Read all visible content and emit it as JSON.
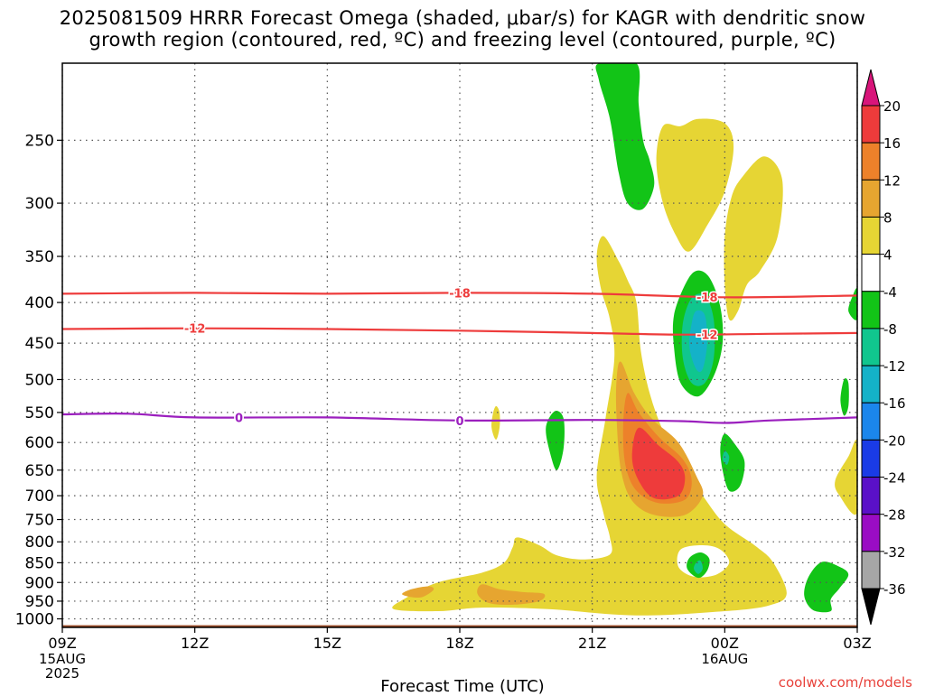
{
  "title": {
    "line1": "2025081509 HRRR Forecast Omega (shaded, μbar/s) for KAGR with dendritic snow",
    "line2": "growth region (contoured, red, ºC) and freezing level (contoured, purple, ºC)"
  },
  "credit": "coolwx.com/models",
  "colors": {
    "ground": "#a0522d",
    "dgz_contour": "#ee3c3c",
    "freezing_contour": "#9b1fbe",
    "grid": "#555555"
  },
  "chart_data": {
    "type": "heatmap",
    "xlabel": "Forecast Time (UTC)",
    "ylabel": "",
    "x_ticks": [
      {
        "hour": 0,
        "label": "09Z",
        "sub": [
          "15AUG",
          "2025"
        ]
      },
      {
        "hour": 3,
        "label": "12Z",
        "sub": []
      },
      {
        "hour": 6,
        "label": "15Z",
        "sub": []
      },
      {
        "hour": 9,
        "label": "18Z",
        "sub": []
      },
      {
        "hour": 12,
        "label": "21Z",
        "sub": []
      },
      {
        "hour": 15,
        "label": "00Z",
        "sub": [
          "16AUG"
        ]
      },
      {
        "hour": 18,
        "label": "03Z",
        "sub": []
      }
    ],
    "xlim": [
      0,
      18
    ],
    "ylim_hpa": [
      1025,
      200
    ],
    "y_log": true,
    "y_ticks": [
      250,
      300,
      350,
      400,
      450,
      500,
      550,
      600,
      650,
      700,
      750,
      800,
      850,
      900,
      950,
      1000
    ],
    "grid": true,
    "colorbar": {
      "levels": [
        "20",
        "16",
        "12",
        "8",
        "4",
        "-4",
        "-8",
        "-12",
        "-16",
        "-20",
        "-24",
        "-28",
        "-32",
        "-36"
      ],
      "colors": [
        "#ee3b3b",
        "#ed812a",
        "#e6a530",
        "#e6d534",
        "#ffffff",
        "#12c417",
        "#10c68e",
        "#14b2c8",
        "#1b86ec",
        "#1a3be6",
        "#5a10c8",
        "#9a0cc4",
        "#a6a6a6"
      ],
      "top_arrow": "#d8157a",
      "bottom_arrow": "#000000"
    },
    "contours": [
      {
        "label": "-18",
        "color": "#ee3c3c",
        "points": [
          [
            0,
            390
          ],
          [
            3,
            389
          ],
          [
            6,
            390
          ],
          [
            9,
            389
          ],
          [
            12,
            390
          ],
          [
            15,
            394
          ],
          [
            18,
            392
          ]
        ],
        "label_positions": [
          9.0,
          14.6
        ]
      },
      {
        "label": "-12",
        "color": "#ee3c3c",
        "points": [
          [
            0,
            432
          ],
          [
            3,
            431
          ],
          [
            6,
            432
          ],
          [
            9,
            434
          ],
          [
            12,
            437
          ],
          [
            14,
            439
          ],
          [
            16,
            438
          ],
          [
            18,
            437
          ]
        ],
        "label_positions": [
          3.0,
          14.6
        ]
      },
      {
        "label": "0",
        "color": "#9b1fbe",
        "points": [
          [
            0,
            553
          ],
          [
            1.5,
            552
          ],
          [
            3,
            558
          ],
          [
            6,
            558
          ],
          [
            9,
            563
          ],
          [
            12,
            562
          ],
          [
            14,
            564
          ],
          [
            15,
            567
          ],
          [
            16,
            563
          ],
          [
            18,
            558
          ]
        ],
        "label_positions": [
          4.0,
          9.0
        ]
      }
    ],
    "shaded_regions": [
      {
        "value": 6,
        "color": "#e6d534",
        "points": [
          [
            12.25,
            330
          ],
          [
            12.6,
            355
          ],
          [
            12.8,
            375
          ],
          [
            13.0,
            400
          ],
          [
            13.1,
            460
          ],
          [
            13.3,
            520
          ],
          [
            13.6,
            580
          ],
          [
            14.0,
            640
          ],
          [
            14.5,
            700
          ],
          [
            15.0,
            760
          ],
          [
            15.7,
            810
          ],
          [
            16.1,
            850
          ],
          [
            16.4,
            930
          ],
          [
            16.0,
            962
          ],
          [
            15.0,
            978
          ],
          [
            13.0,
            990
          ],
          [
            11.0,
            972
          ],
          [
            9.5,
            968
          ],
          [
            8.5,
            978
          ],
          [
            7.5,
            972
          ],
          [
            7.8,
            940
          ],
          [
            8.5,
            900
          ],
          [
            9.5,
            875
          ],
          [
            10.0,
            850
          ],
          [
            10.2,
            812
          ],
          [
            10.3,
            790
          ],
          [
            10.8,
            808
          ],
          [
            11.2,
            832
          ],
          [
            11.8,
            842
          ],
          [
            12.4,
            830
          ],
          [
            12.4,
            790
          ],
          [
            12.25,
            735
          ],
          [
            12.1,
            660
          ],
          [
            12.3,
            560
          ],
          [
            12.5,
            470
          ],
          [
            12.4,
            420
          ],
          [
            12.2,
            385
          ],
          [
            12.1,
            350
          ]
        ]
      },
      {
        "value": 6,
        "color": "#e6d534",
        "points": [
          [
            13.6,
            240
          ],
          [
            14.0,
            240
          ],
          [
            14.4,
            235
          ],
          [
            15.0,
            238
          ],
          [
            15.2,
            255
          ],
          [
            15.0,
            290
          ],
          [
            14.6,
            320
          ],
          [
            14.2,
            345
          ],
          [
            13.9,
            330
          ],
          [
            13.6,
            300
          ],
          [
            13.45,
            265
          ]
        ]
      },
      {
        "value": 6,
        "color": "#e6d534",
        "points": [
          [
            15.4,
            278
          ],
          [
            15.9,
            262
          ],
          [
            16.3,
            280
          ],
          [
            16.2,
            330
          ],
          [
            15.8,
            365
          ],
          [
            15.5,
            380
          ],
          [
            15.3,
            410
          ],
          [
            15.1,
            420
          ],
          [
            15.0,
            380
          ],
          [
            15.0,
            330
          ],
          [
            15.15,
            295
          ]
        ]
      },
      {
        "value": 6,
        "color": "#e6d534",
        "points": [
          [
            17.8,
            625
          ],
          [
            18.0,
            600
          ],
          [
            18.0,
            735
          ],
          [
            17.6,
            700
          ],
          [
            17.5,
            670
          ]
        ]
      },
      {
        "value": 6,
        "color": "#e6d534",
        "points": [
          [
            9.82,
            540
          ],
          [
            9.9,
            550
          ],
          [
            9.9,
            575
          ],
          [
            9.82,
            595
          ],
          [
            9.72,
            575
          ],
          [
            9.75,
            552
          ]
        ]
      },
      {
        "value": 10,
        "color": "#e6a530",
        "points": [
          [
            9.5,
            905
          ],
          [
            9.9,
            918
          ],
          [
            10.4,
            925
          ],
          [
            10.9,
            930
          ],
          [
            10.8,
            950
          ],
          [
            10.2,
            960
          ],
          [
            9.65,
            955
          ],
          [
            9.4,
            930
          ]
        ]
      },
      {
        "value": 10,
        "color": "#e6a530",
        "points": [
          [
            7.9,
            918
          ],
          [
            8.3,
            910
          ],
          [
            8.4,
            920
          ],
          [
            8.1,
            940
          ],
          [
            7.7,
            932
          ]
        ]
      },
      {
        "value": 10,
        "color": "#e6a530",
        "points": [
          [
            12.65,
            475
          ],
          [
            12.95,
            520
          ],
          [
            13.35,
            560
          ],
          [
            13.95,
            600
          ],
          [
            14.35,
            660
          ],
          [
            14.5,
            700
          ],
          [
            14.1,
            740
          ],
          [
            13.4,
            740
          ],
          [
            12.9,
            710
          ],
          [
            12.65,
            650
          ],
          [
            12.55,
            560
          ],
          [
            12.55,
            500
          ]
        ]
      },
      {
        "value": 14,
        "color": "#ed812a",
        "points": [
          [
            12.8,
            520
          ],
          [
            13.05,
            550
          ],
          [
            13.5,
            590
          ],
          [
            14.05,
            630
          ],
          [
            14.25,
            670
          ],
          [
            14.1,
            708
          ],
          [
            13.5,
            715
          ],
          [
            13.0,
            690
          ],
          [
            12.75,
            640
          ],
          [
            12.7,
            570
          ]
        ]
      },
      {
        "value": 18,
        "color": "#ee3b3b",
        "points": [
          [
            13.05,
            575
          ],
          [
            13.5,
            605
          ],
          [
            13.95,
            635
          ],
          [
            14.1,
            665
          ],
          [
            13.95,
            700
          ],
          [
            13.4,
            705
          ],
          [
            13.05,
            670
          ],
          [
            12.9,
            625
          ]
        ]
      },
      {
        "value": 0,
        "color": "#ffffff",
        "points": [
          [
            14.0,
            818
          ],
          [
            14.5,
            808
          ],
          [
            14.9,
            818
          ],
          [
            15.1,
            850
          ],
          [
            14.8,
            880
          ],
          [
            14.3,
            885
          ],
          [
            13.95,
            860
          ]
        ]
      },
      {
        "value": -6,
        "color": "#12c417",
        "points": [
          [
            12.15,
            200
          ],
          [
            13.0,
            200
          ],
          [
            13.05,
            225
          ],
          [
            13.15,
            250
          ],
          [
            13.3,
            265
          ],
          [
            13.4,
            285
          ],
          [
            13.15,
            305
          ],
          [
            12.8,
            300
          ],
          [
            12.6,
            275
          ],
          [
            12.4,
            235
          ],
          [
            12.15,
            210
          ]
        ]
      },
      {
        "value": -6,
        "color": "#12c417",
        "points": [
          [
            14.1,
            380
          ],
          [
            14.35,
            365
          ],
          [
            14.65,
            372
          ],
          [
            14.9,
            405
          ],
          [
            14.95,
            450
          ],
          [
            14.75,
            495
          ],
          [
            14.4,
            525
          ],
          [
            14.0,
            505
          ],
          [
            13.85,
            455
          ],
          [
            13.85,
            415
          ]
        ]
      },
      {
        "value": -10,
        "color": "#10c68e",
        "points": [
          [
            14.25,
            395
          ],
          [
            14.55,
            392
          ],
          [
            14.75,
            420
          ],
          [
            14.75,
            470
          ],
          [
            14.55,
            505
          ],
          [
            14.25,
            505
          ],
          [
            14.05,
            470
          ],
          [
            14.05,
            425
          ]
        ]
      },
      {
        "value": -14,
        "color": "#14b2c8",
        "points": [
          [
            14.35,
            410
          ],
          [
            14.55,
            415
          ],
          [
            14.6,
            450
          ],
          [
            14.5,
            485
          ],
          [
            14.35,
            485
          ],
          [
            14.2,
            455
          ],
          [
            14.25,
            425
          ]
        ]
      },
      {
        "value": -6,
        "color": "#12c417",
        "points": [
          [
            11.15,
            548
          ],
          [
            11.35,
            560
          ],
          [
            11.35,
            610
          ],
          [
            11.2,
            650
          ],
          [
            11.05,
            620
          ],
          [
            10.95,
            575
          ]
        ]
      },
      {
        "value": -6,
        "color": "#12c417",
        "points": [
          [
            15.0,
            585
          ],
          [
            15.25,
            605
          ],
          [
            15.45,
            635
          ],
          [
            15.35,
            680
          ],
          [
            15.1,
            690
          ],
          [
            14.95,
            650
          ],
          [
            14.9,
            610
          ]
        ]
      },
      {
        "value": -10,
        "color": "#10c68e",
        "points": [
          [
            15.0,
            615
          ],
          [
            15.1,
            625
          ],
          [
            15.05,
            640
          ],
          [
            14.95,
            630
          ]
        ]
      },
      {
        "value": -6,
        "color": "#12c417",
        "points": [
          [
            14.2,
            838
          ],
          [
            14.45,
            825
          ],
          [
            14.65,
            840
          ],
          [
            14.6,
            870
          ],
          [
            14.4,
            888
          ],
          [
            14.15,
            865
          ]
        ]
      },
      {
        "value": -10,
        "color": "#10c68e",
        "points": [
          [
            14.35,
            850
          ],
          [
            14.45,
            845
          ],
          [
            14.5,
            865
          ],
          [
            14.4,
            878
          ],
          [
            14.3,
            865
          ]
        ]
      },
      {
        "value": -6,
        "color": "#12c417",
        "points": [
          [
            17.2,
            848
          ],
          [
            17.6,
            860
          ],
          [
            17.8,
            880
          ],
          [
            17.6,
            915
          ],
          [
            17.4,
            945
          ],
          [
            17.4,
            978
          ],
          [
            17.0,
            975
          ],
          [
            16.8,
            935
          ],
          [
            16.9,
            885
          ]
        ]
      },
      {
        "value": -6,
        "color": "#12c417",
        "points": [
          [
            17.7,
            500
          ],
          [
            17.8,
            505
          ],
          [
            17.8,
            540
          ],
          [
            17.7,
            555
          ],
          [
            17.62,
            530
          ]
        ]
      },
      {
        "value": -6,
        "color": "#12c417",
        "points": [
          [
            18.0,
            385
          ],
          [
            18.0,
            420
          ],
          [
            17.8,
            410
          ],
          [
            17.9,
            392
          ]
        ]
      }
    ]
  }
}
